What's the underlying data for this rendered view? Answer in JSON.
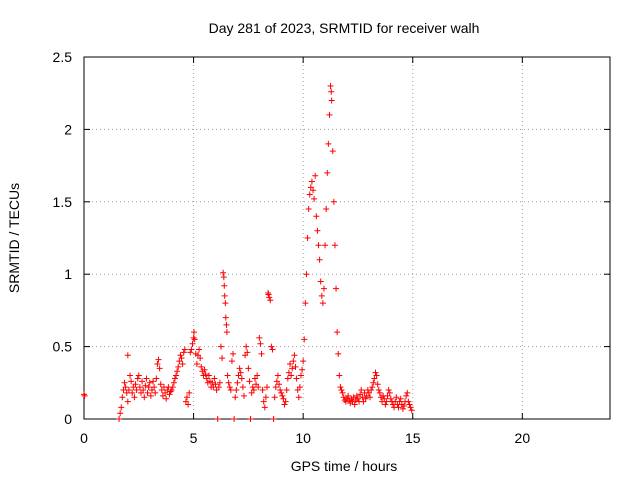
{
  "chart_data": {
    "type": "scatter",
    "title": "Day 281 of 2023, SRMTID for receiver walh",
    "xlabel": "GPS time / hours",
    "ylabel": "SRMTID / TECUs",
    "xlim": [
      0,
      24
    ],
    "ylim": [
      0,
      2.5
    ],
    "xticks": [
      0,
      5,
      10,
      15,
      20
    ],
    "xtick_labels": [
      "0",
      "5",
      "10",
      "15",
      "20"
    ],
    "yticks": [
      0,
      0.5,
      1,
      1.5,
      2,
      2.5
    ],
    "ytick_labels": [
      "0",
      "0.5",
      "1",
      "1.5",
      "2",
      "2.5"
    ],
    "grid": true,
    "marker": "plus",
    "color": "#ff0000",
    "series": [
      {
        "name": "SRMTID",
        "points": [
          [
            0.0,
            0.17
          ],
          [
            0.03,
            0.16
          ],
          [
            1.6,
            0.0
          ],
          [
            1.65,
            0.04
          ],
          [
            1.7,
            0.08
          ],
          [
            1.75,
            0.15
          ],
          [
            1.8,
            0.2
          ],
          [
            1.85,
            0.25
          ],
          [
            1.9,
            0.22
          ],
          [
            1.95,
            0.18
          ],
          [
            2.0,
            0.44
          ],
          [
            2.0,
            0.12
          ],
          [
            2.05,
            0.2
          ],
          [
            2.1,
            0.3
          ],
          [
            2.15,
            0.26
          ],
          [
            2.2,
            0.18
          ],
          [
            2.25,
            0.22
          ],
          [
            2.3,
            0.15
          ],
          [
            2.35,
            0.24
          ],
          [
            2.4,
            0.2
          ],
          [
            2.45,
            0.28
          ],
          [
            2.5,
            0.3
          ],
          [
            2.55,
            0.22
          ],
          [
            2.6,
            0.18
          ],
          [
            2.65,
            0.26
          ],
          [
            2.7,
            0.2
          ],
          [
            2.75,
            0.15
          ],
          [
            2.8,
            0.23
          ],
          [
            2.85,
            0.28
          ],
          [
            2.9,
            0.18
          ],
          [
            2.95,
            0.22
          ],
          [
            3.0,
            0.25
          ],
          [
            3.05,
            0.16
          ],
          [
            3.1,
            0.2
          ],
          [
            3.15,
            0.26
          ],
          [
            3.2,
            0.22
          ],
          [
            3.25,
            0.18
          ],
          [
            3.3,
            0.28
          ],
          [
            3.35,
            0.38
          ],
          [
            3.4,
            0.41
          ],
          [
            3.45,
            0.35
          ],
          [
            3.5,
            0.24
          ],
          [
            3.55,
            0.2
          ],
          [
            3.6,
            0.16
          ],
          [
            3.65,
            0.22
          ],
          [
            3.7,
            0.18
          ],
          [
            3.75,
            0.14
          ],
          [
            3.8,
            0.2
          ],
          [
            3.85,
            0.22
          ],
          [
            3.9,
            0.17
          ],
          [
            3.95,
            0.19
          ],
          [
            4.0,
            0.2
          ],
          [
            4.05,
            0.22
          ],
          [
            4.1,
            0.25
          ],
          [
            4.15,
            0.28
          ],
          [
            4.2,
            0.3
          ],
          [
            4.25,
            0.33
          ],
          [
            4.3,
            0.36
          ],
          [
            4.35,
            0.4
          ],
          [
            4.4,
            0.44
          ],
          [
            4.45,
            0.42
          ],
          [
            4.5,
            0.38
          ],
          [
            4.55,
            0.46
          ],
          [
            4.6,
            0.48
          ],
          [
            4.65,
            0.12
          ],
          [
            4.7,
            0.15
          ],
          [
            4.75,
            0.1
          ],
          [
            4.8,
            0.18
          ],
          [
            4.85,
            0.46
          ],
          [
            4.9,
            0.48
          ],
          [
            4.95,
            0.52
          ],
          [
            5.0,
            0.56
          ],
          [
            5.02,
            0.6
          ],
          [
            5.05,
            0.55
          ],
          [
            5.1,
            0.45
          ],
          [
            5.15,
            0.38
          ],
          [
            5.2,
            0.44
          ],
          [
            5.25,
            0.48
          ],
          [
            5.3,
            0.42
          ],
          [
            5.35,
            0.36
          ],
          [
            5.4,
            0.33
          ],
          [
            5.45,
            0.3
          ],
          [
            5.5,
            0.34
          ],
          [
            5.55,
            0.31
          ],
          [
            5.6,
            0.28
          ],
          [
            5.65,
            0.25
          ],
          [
            5.7,
            0.3
          ],
          [
            5.75,
            0.26
          ],
          [
            5.8,
            0.22
          ],
          [
            5.85,
            0.25
          ],
          [
            5.9,
            0.22
          ],
          [
            5.95,
            0.28
          ],
          [
            6.0,
            0.24
          ],
          [
            6.05,
            0.2
          ],
          [
            6.1,
            0.0
          ],
          [
            6.15,
            0.22
          ],
          [
            6.2,
            0.25
          ],
          [
            6.25,
            0.5
          ],
          [
            6.3,
            0.42
          ],
          [
            6.35,
            1.01
          ],
          [
            6.38,
            0.98
          ],
          [
            6.4,
            0.92
          ],
          [
            6.42,
            0.85
          ],
          [
            6.45,
            0.8
          ],
          [
            6.47,
            0.7
          ],
          [
            6.5,
            0.65
          ],
          [
            6.52,
            0.6
          ],
          [
            6.55,
            0.3
          ],
          [
            6.6,
            0.25
          ],
          [
            6.65,
            0.22
          ],
          [
            6.7,
            0.2
          ],
          [
            6.75,
            0.4
          ],
          [
            6.8,
            0.45
          ],
          [
            6.85,
            0.0
          ],
          [
            6.9,
            0.15
          ],
          [
            6.95,
            0.2
          ],
          [
            7.0,
            0.25
          ],
          [
            7.05,
            0.3
          ],
          [
            7.1,
            0.35
          ],
          [
            7.15,
            0.32
          ],
          [
            7.2,
            0.28
          ],
          [
            7.25,
            0.22
          ],
          [
            7.3,
            0.16
          ],
          [
            7.35,
            0.44
          ],
          [
            7.4,
            0.5
          ],
          [
            7.45,
            0.46
          ],
          [
            7.5,
            0.35
          ],
          [
            7.55,
            0.26
          ],
          [
            7.6,
            0.0
          ],
          [
            7.65,
            0.18
          ],
          [
            7.7,
            0.22
          ],
          [
            7.75,
            0.2
          ],
          [
            7.8,
            0.28
          ],
          [
            7.85,
            0.24
          ],
          [
            7.9,
            0.3
          ],
          [
            7.95,
            0.22
          ],
          [
            8.0,
            0.56
          ],
          [
            8.05,
            0.52
          ],
          [
            8.1,
            0.45
          ],
          [
            8.15,
            0.2
          ],
          [
            8.2,
            0.12
          ],
          [
            8.25,
            0.08
          ],
          [
            8.3,
            0.15
          ],
          [
            8.35,
            0.22
          ],
          [
            8.4,
            0.87
          ],
          [
            8.42,
            0.86
          ],
          [
            8.45,
            0.84
          ],
          [
            8.5,
            0.82
          ],
          [
            8.55,
            0.5
          ],
          [
            8.6,
            0.48
          ],
          [
            8.65,
            0.0
          ],
          [
            8.7,
            0.15
          ],
          [
            8.75,
            0.22
          ],
          [
            8.8,
            0.26
          ],
          [
            8.85,
            0.3
          ],
          [
            8.9,
            0.24
          ],
          [
            8.95,
            0.2
          ],
          [
            9.0,
            0.18
          ],
          [
            9.05,
            0.16
          ],
          [
            9.1,
            0.14
          ],
          [
            9.15,
            0.1
          ],
          [
            9.2,
            0.12
          ],
          [
            9.25,
            0.2
          ],
          [
            9.3,
            0.28
          ],
          [
            9.35,
            0.32
          ],
          [
            9.4,
            0.38
          ],
          [
            9.45,
            0.3
          ],
          [
            9.5,
            0.35
          ],
          [
            9.55,
            0.4
          ],
          [
            9.6,
            0.44
          ],
          [
            9.65,
            0.36
          ],
          [
            9.7,
            0.28
          ],
          [
            9.75,
            0.2
          ],
          [
            9.8,
            0.15
          ],
          [
            9.85,
            0.22
          ],
          [
            9.9,
            0.3
          ],
          [
            9.95,
            0.34
          ],
          [
            10.0,
            0.4
          ],
          [
            10.05,
            0.55
          ],
          [
            10.1,
            0.8
          ],
          [
            10.15,
            1.0
          ],
          [
            10.2,
            1.25
          ],
          [
            10.25,
            1.45
          ],
          [
            10.3,
            1.55
          ],
          [
            10.35,
            1.6
          ],
          [
            10.4,
            1.64
          ],
          [
            10.45,
            1.58
          ],
          [
            10.5,
            1.52
          ],
          [
            10.55,
            1.68
          ],
          [
            10.6,
            1.4
          ],
          [
            10.65,
            1.3
          ],
          [
            10.7,
            1.2
          ],
          [
            10.75,
            1.1
          ],
          [
            10.8,
            0.95
          ],
          [
            10.85,
            0.85
          ],
          [
            10.9,
            0.8
          ],
          [
            10.95,
            0.9
          ],
          [
            11.0,
            1.2
          ],
          [
            11.05,
            1.45
          ],
          [
            11.1,
            1.7
          ],
          [
            11.15,
            1.9
          ],
          [
            11.2,
            2.1
          ],
          [
            11.25,
            2.3
          ],
          [
            11.28,
            2.26
          ],
          [
            11.3,
            2.2
          ],
          [
            11.35,
            1.85
          ],
          [
            11.4,
            1.5
          ],
          [
            11.45,
            1.2
          ],
          [
            11.5,
            0.9
          ],
          [
            11.55,
            0.6
          ],
          [
            11.6,
            0.45
          ],
          [
            11.65,
            0.3
          ],
          [
            11.7,
            0.22
          ],
          [
            11.75,
            0.2
          ],
          [
            11.8,
            0.18
          ],
          [
            11.85,
            0.15
          ],
          [
            11.9,
            0.13
          ],
          [
            11.95,
            0.12
          ],
          [
            12.0,
            0.14
          ],
          [
            12.05,
            0.16
          ],
          [
            12.1,
            0.13
          ],
          [
            12.15,
            0.11
          ],
          [
            12.2,
            0.14
          ],
          [
            12.25,
            0.12
          ],
          [
            12.3,
            0.15
          ],
          [
            12.35,
            0.1
          ],
          [
            12.4,
            0.13
          ],
          [
            12.45,
            0.16
          ],
          [
            12.5,
            0.14
          ],
          [
            12.55,
            0.12
          ],
          [
            12.6,
            0.17
          ],
          [
            12.65,
            0.2
          ],
          [
            12.7,
            0.15
          ],
          [
            12.75,
            0.12
          ],
          [
            12.8,
            0.18
          ],
          [
            12.85,
            0.14
          ],
          [
            12.9,
            0.16
          ],
          [
            12.95,
            0.2
          ],
          [
            13.0,
            0.18
          ],
          [
            13.05,
            0.15
          ],
          [
            13.1,
            0.2
          ],
          [
            13.15,
            0.22
          ],
          [
            13.2,
            0.25
          ],
          [
            13.25,
            0.28
          ],
          [
            13.3,
            0.32
          ],
          [
            13.35,
            0.3
          ],
          [
            13.4,
            0.24
          ],
          [
            13.45,
            0.2
          ],
          [
            13.5,
            0.18
          ],
          [
            13.55,
            0.15
          ],
          [
            13.6,
            0.12
          ],
          [
            13.65,
            0.16
          ],
          [
            13.7,
            0.14
          ],
          [
            13.75,
            0.1
          ],
          [
            13.8,
            0.12
          ],
          [
            13.85,
            0.16
          ],
          [
            13.9,
            0.2
          ],
          [
            13.95,
            0.18
          ],
          [
            14.0,
            0.14
          ],
          [
            14.05,
            0.12
          ],
          [
            14.1,
            0.1
          ],
          [
            14.15,
            0.08
          ],
          [
            14.2,
            0.12
          ],
          [
            14.25,
            0.15
          ],
          [
            14.3,
            0.1
          ],
          [
            14.35,
            0.08
          ],
          [
            14.4,
            0.12
          ],
          [
            14.45,
            0.14
          ],
          [
            14.5,
            0.1
          ],
          [
            14.55,
            0.07
          ],
          [
            14.6,
            0.09
          ],
          [
            14.65,
            0.12
          ],
          [
            14.7,
            0.16
          ],
          [
            14.75,
            0.18
          ],
          [
            14.8,
            0.12
          ],
          [
            14.85,
            0.1
          ],
          [
            14.9,
            0.08
          ],
          [
            14.95,
            0.06
          ]
        ]
      }
    ]
  }
}
